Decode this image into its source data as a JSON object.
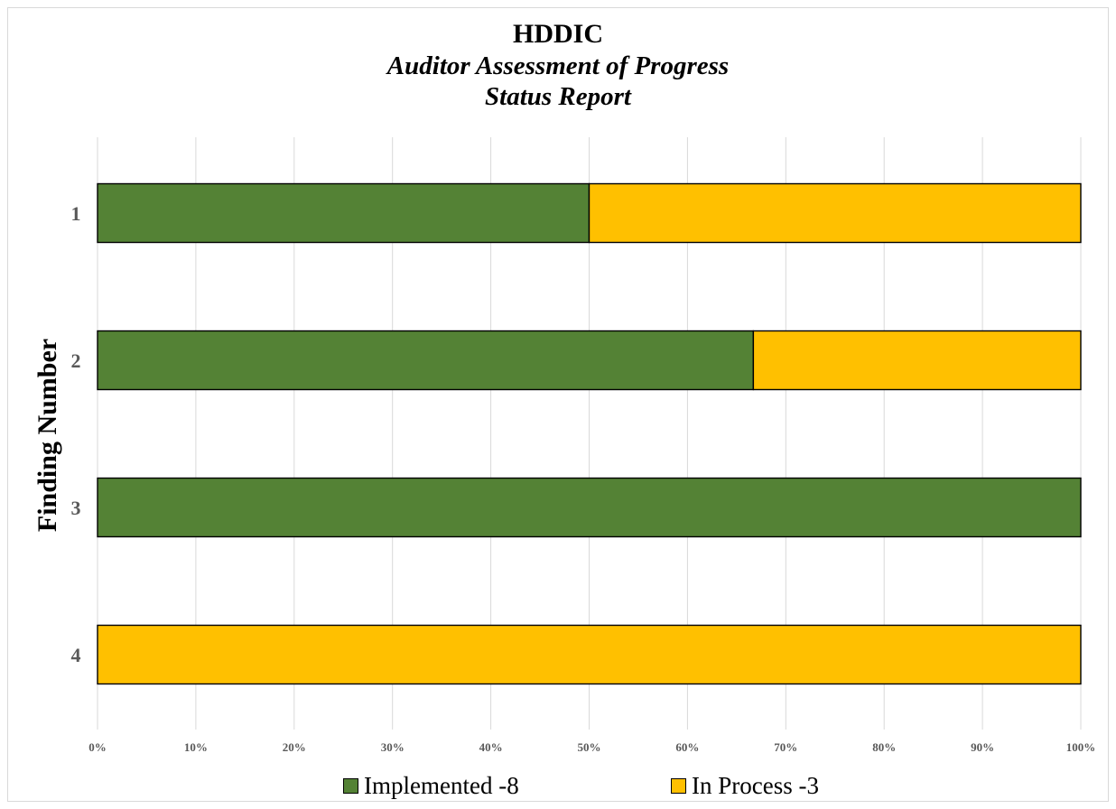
{
  "chart_data": {
    "type": "bar",
    "orientation": "horizontal",
    "stacked": "percent",
    "title": "HDDIC",
    "subtitle": [
      "Auditor Assessment of Progress",
      "Status Report"
    ],
    "ylabel": "Finding Number",
    "xlabel": "",
    "categories": [
      "1",
      "2",
      "3",
      "4"
    ],
    "series": [
      {
        "name": "Implemented -8",
        "color": "#548235",
        "values": [
          50,
          66.7,
          100,
          0
        ]
      },
      {
        "name": "In Process -3",
        "color": "#ffc000",
        "values": [
          50,
          33.3,
          0,
          100
        ]
      }
    ],
    "xlim": [
      0,
      100
    ],
    "x_ticks": [
      "0%",
      "10%",
      "20%",
      "30%",
      "40%",
      "50%",
      "60%",
      "70%",
      "80%",
      "90%",
      "100%"
    ],
    "grid": true,
    "legend": "bottom"
  }
}
